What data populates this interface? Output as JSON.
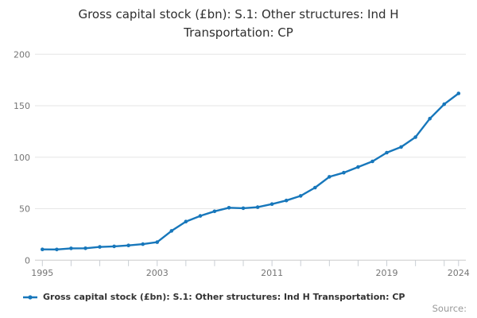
{
  "header": {
    "title_line1": "Gross capital stock (£bn): S.1: Other structures: Ind H",
    "title_line2": "Transportation: CP"
  },
  "legend": {
    "label": "Gross capital stock (£bn): S.1: Other structures: Ind H Transportation: CP"
  },
  "footer": {
    "source_label": "Source:"
  },
  "colors": {
    "line": "#1777bb",
    "grid": "#e6e6e6",
    "axis": "#cccccc",
    "tick": "#c9ced4",
    "axis_label": "#757575"
  },
  "chart_data": {
    "type": "line",
    "title": "Gross capital stock (£bn): S.1: Other structures: Ind H Transportation: CP",
    "xlabel": "",
    "ylabel": "",
    "x": [
      1995,
      1996,
      1997,
      1998,
      1999,
      2000,
      2001,
      2002,
      2003,
      2004,
      2005,
      2006,
      2007,
      2008,
      2009,
      2010,
      2011,
      2012,
      2013,
      2014,
      2015,
      2016,
      2017,
      2018,
      2019,
      2020,
      2021,
      2022,
      2023,
      2024
    ],
    "series": [
      {
        "name": "Gross capital stock (£bn): S.1: Other structures: Ind H Transportation: CP",
        "values": [
          10.5,
          10.4,
          11.5,
          11.6,
          12.9,
          13.4,
          14.4,
          15.6,
          17.5,
          28.5,
          37.5,
          43,
          47.5,
          51,
          50.5,
          51.5,
          54.5,
          58,
          62.5,
          70.5,
          81,
          85,
          90.5,
          96,
          104.5,
          110,
          119.5,
          137.5,
          151.5,
          162
        ]
      }
    ],
    "xlim": [
      1995,
      2024
    ],
    "ylim": [
      0,
      200
    ],
    "yticks": [
      0,
      50,
      100,
      150,
      200
    ],
    "xtick_minor_years": [
      1995,
      1997,
      1999,
      2001,
      2003,
      2005,
      2007,
      2009,
      2011,
      2013,
      2015,
      2017,
      2019,
      2021,
      2023,
      2024
    ],
    "xtick_labels": [
      1995,
      2003,
      2011,
      2019,
      2024
    ],
    "grid": true,
    "marker": "circle",
    "legend_position": "bottom-left"
  }
}
